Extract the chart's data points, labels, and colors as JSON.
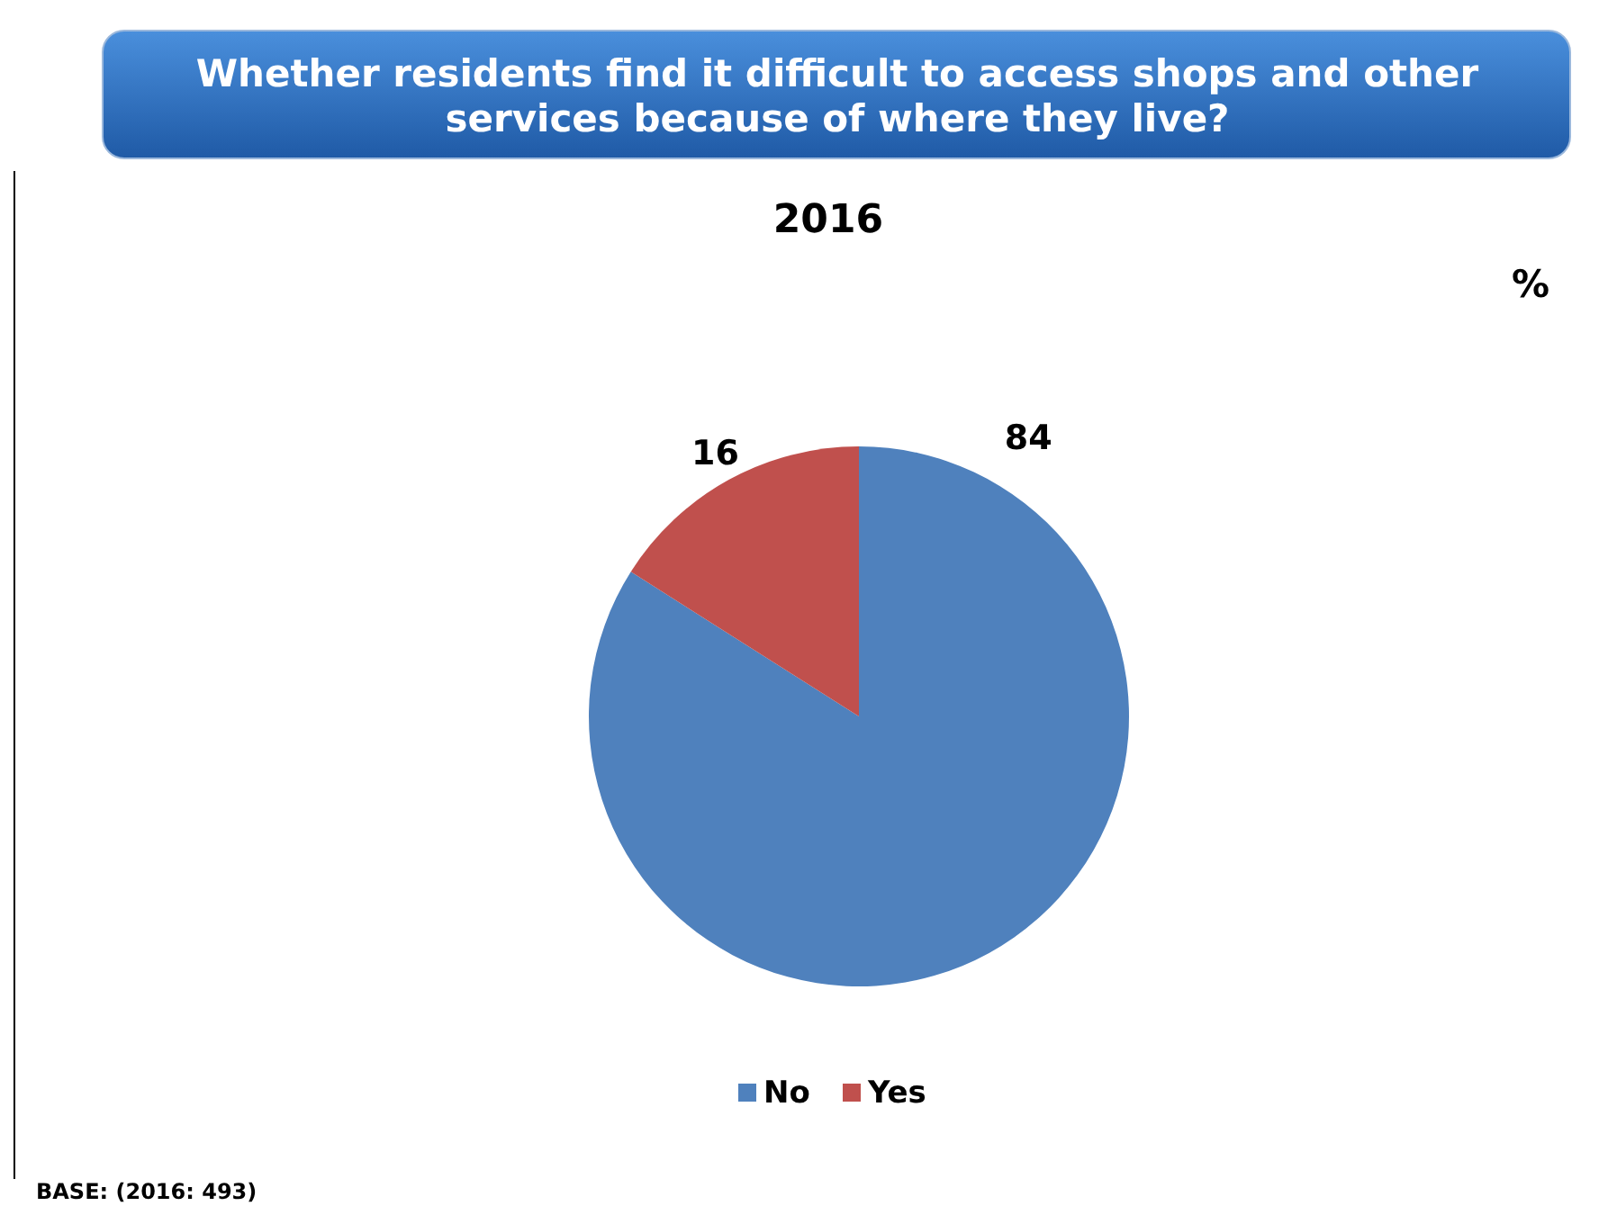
{
  "chart_data": {
    "type": "pie",
    "title": "Whether residents find it difficult to access shops and other services because of where they live?",
    "subtitle": "2016",
    "categories": [
      "No",
      "Yes"
    ],
    "values": [
      84,
      16
    ],
    "colors": [
      "#4f81bd",
      "#c0504d"
    ],
    "data_labels": true,
    "legend": "bottom",
    "annotations": [
      "%",
      "BASE: (2016: 493)"
    ]
  }
}
